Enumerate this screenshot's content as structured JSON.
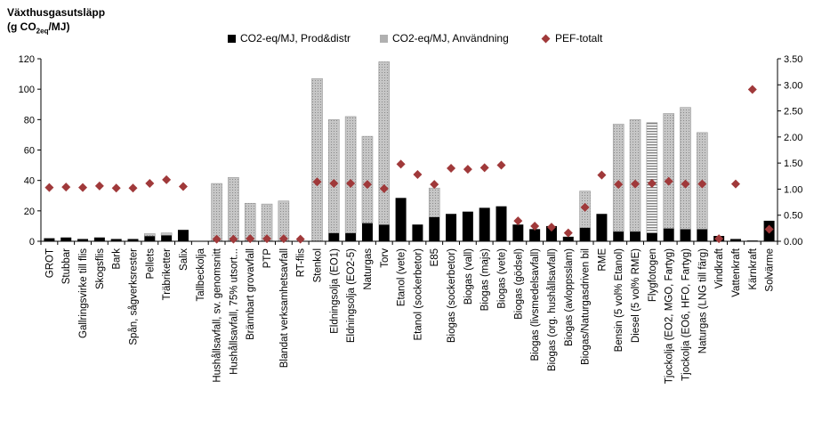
{
  "chart_data": {
    "type": "bar",
    "title": "Växthusgasutsläpp (g CO2eq/MJ)",
    "ylabel_line1": "Växthusgasutsläpp",
    "ylabel_line2_pre": "(g CO",
    "ylabel_line2_sub": "2eq",
    "ylabel_line2_post": "/MJ)",
    "ylim": [
      0,
      120
    ],
    "y2lim": [
      0,
      3.5
    ],
    "yticks": [
      "0",
      "20",
      "40",
      "60",
      "80",
      "100",
      "120"
    ],
    "y2ticks": [
      "0.00",
      "0.50",
      "1.00",
      "1.50",
      "2.00",
      "2.50",
      "3.00",
      "3.50"
    ],
    "categories": [
      "GROT",
      "Stubbar",
      "Gallringsvirke till flis",
      "Skogsflis",
      "Bark",
      "Spån, sågverksrester",
      "Pellets",
      "Träbriketter",
      "Salix",
      "Tallbeckolja",
      "Hushållsavfall, sv. genomsnitt",
      "Hushållsavfall, 75% utsort...",
      "Brännbart grovavfall",
      "PTP",
      "Blandat verksamhetsavfall",
      "RT-flis",
      "Stenkol",
      "Eldningsolja (EO1)",
      "Eldningsolja (EO2-5)",
      "Naturgas",
      "Torv",
      "Etanol (vete)",
      "Etanol (sockerbetor)",
      "E85",
      "Biogas (sockerbetor)",
      "Biogas (vall)",
      "Biogas (majs)",
      "Biogas (vete)",
      "Biogas (gödsel)",
      "Biogas (livsmedelsavfall)",
      "Biogas (org. hushållsavfall)",
      "Biogas (avloppsslam)",
      "Biogas/Naturgasdriven bil",
      "RME",
      "Bensin (5 vol% Etanol)",
      "Diesel (5 vol% RME)",
      "Flygfotogen",
      "Tjockolja (EO2, MGO, Fartyg)",
      "Tjockolja (EO6, HFO, Fartyg)",
      "Naturgas (LNG till färg)",
      "Vindkraft",
      "Vattenkraft",
      "Kärnkraft",
      "Solvärme"
    ],
    "series": [
      {
        "name": "CO2-eq/MJ, Prod&distr",
        "axis": "left",
        "color": "#000000",
        "values": [
          2,
          2.5,
          1.5,
          2.5,
          1.5,
          1.5,
          3.5,
          4,
          7.5,
          0,
          0,
          0,
          0,
          0,
          0,
          0,
          0,
          5.5,
          5.5,
          12,
          11,
          28.5,
          11,
          16,
          18,
          19.5,
          22,
          23,
          11,
          8,
          10,
          3,
          9,
          18,
          6.5,
          6.5,
          5.5,
          8.5,
          8,
          8,
          3.5,
          1.5,
          0.5,
          13.5
        ]
      },
      {
        "name": "CO2-eq/MJ, Användning",
        "axis": "left",
        "color": "#b0b0b0",
        "values": [
          0,
          0,
          0,
          0,
          0,
          0,
          1.5,
          1.5,
          0,
          0,
          38,
          42,
          25,
          24.5,
          26.5,
          0,
          107,
          74.5,
          76.5,
          57,
          107,
          0,
          0,
          19,
          0,
          0,
          0,
          0,
          0,
          0,
          0,
          0,
          24,
          0,
          70.5,
          73.5,
          72.5,
          75.5,
          80,
          63.5,
          0,
          0,
          0,
          0
        ]
      },
      {
        "name": "PEF-totalt",
        "axis": "right",
        "color": "#a0393a",
        "marker": "diamond",
        "values": [
          1.03,
          1.04,
          1.03,
          1.06,
          1.02,
          1.02,
          1.11,
          1.18,
          1.05,
          null,
          0.04,
          0.04,
          0.05,
          0.05,
          0.05,
          0.04,
          1.14,
          1.11,
          1.11,
          1.09,
          1.01,
          1.48,
          1.28,
          1.09,
          1.4,
          1.38,
          1.41,
          1.46,
          0.39,
          0.29,
          0.27,
          0.16,
          0.65,
          1.27,
          1.09,
          1.1,
          1.11,
          1.15,
          1.1,
          1.1,
          0.05,
          1.1,
          2.91,
          0.23
        ]
      }
    ],
    "legend_position": "top",
    "grid": "horizontal"
  }
}
